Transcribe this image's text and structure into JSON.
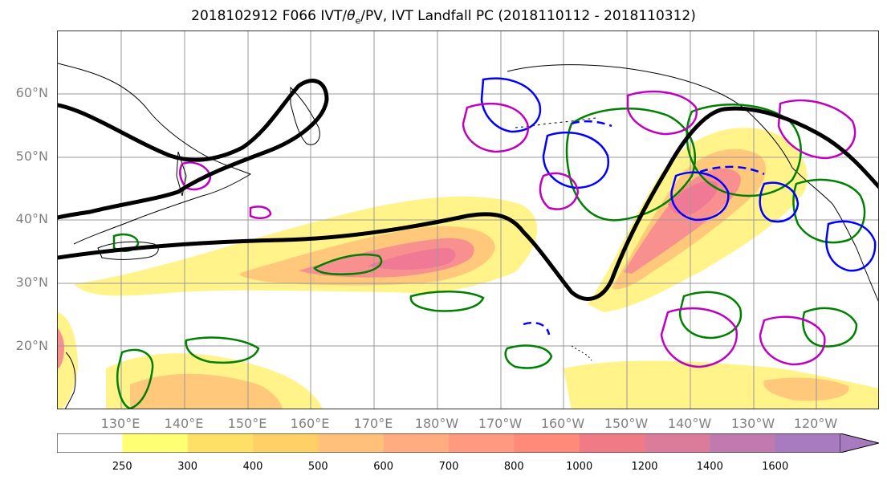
{
  "title_pre": "2018102912 F066 IVT/",
  "title_theta": "θ",
  "title_sub": "e",
  "title_post": "/PV, IVT Landfall PC (2018110112 - 2018110312)",
  "lat_labels": [
    "60°N",
    "50°N",
    "40°N",
    "30°N",
    "20°N"
  ],
  "lon_labels": [
    "130°E",
    "140°E",
    "150°E",
    "160°E",
    "170°E",
    "180°W",
    "170°W",
    "160°W",
    "150°W",
    "140°W",
    "130°W",
    "120°W"
  ],
  "colorbar": {
    "levels": [
      "250",
      "300",
      "400",
      "500",
      "600",
      "700",
      "800",
      "1000",
      "1200",
      "1400",
      "1600"
    ],
    "colors": [
      "#ffffff",
      "#ffff73",
      "#ffe066",
      "#ffd066",
      "#ffc07a",
      "#ffad80",
      "#ff9a80",
      "#ff8a7a",
      "#f07a85",
      "#db7d9a",
      "#c07ab0",
      "#a87ac0"
    ]
  },
  "colors": {
    "ivt_light": "#fff38a",
    "ivt_mid": "#ffc87a",
    "ivt_high": "#f89090",
    "ivt_core": "#f07a95",
    "theta_line": "#000000",
    "pv_green": "#008000",
    "pv_blue": "#0000ff",
    "pv_magenta": "#c000c0",
    "grid": "#999999",
    "coast": "#000000"
  }
}
